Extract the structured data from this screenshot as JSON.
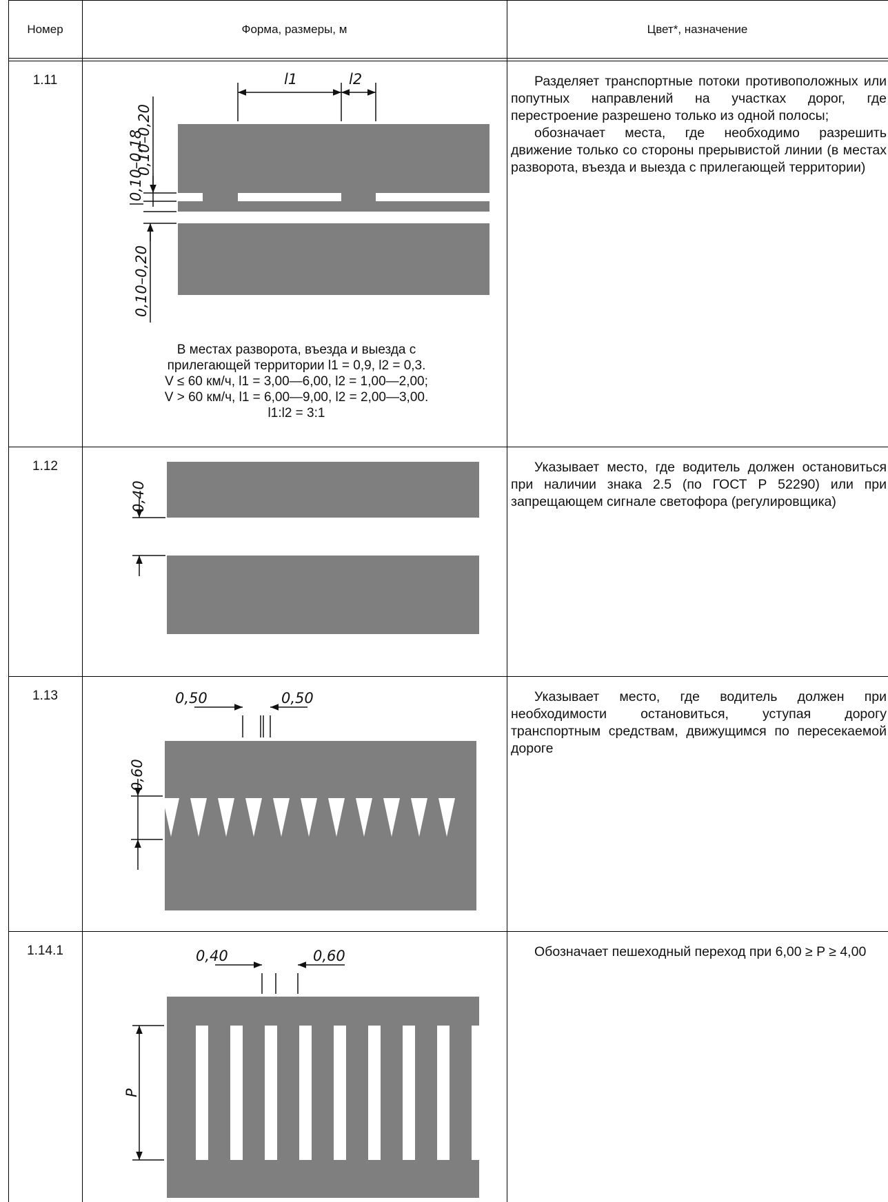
{
  "header": {
    "col_number": "Номер",
    "col_shape": "Форма, размеры, м",
    "col_purpose": "Цвет*, назначение"
  },
  "rows": [
    {
      "number": "1.11",
      "dims": {
        "l1": "l1",
        "l2": "l2",
        "d1": "0,10–0,18",
        "d2": "0,10–0,20",
        "d3": "0,10–0,20"
      },
      "caption": [
        "В местах разворота, въезда и выезда с",
        "прилегающей территории l1 = 0,9, l2 = 0,3.",
        "V ≤ 60 км/ч, l1 = 3,00—6,00, l2 = 1,00—2,00;",
        "V > 60 км/ч, l1 = 6,00—9,00, l2 = 2,00—3,00.",
        "l1:l2 = 3:1"
      ],
      "description": [
        "Разделяет транспортные потоки противоположных или попутных направлений на участках дорог, где перестроение разрешено только из одной полосы;",
        "обозначает места, где необходимо разрешить движение только со стороны прерывистой линии (в местах разворота, въезда и выезда с прилегающей территории)"
      ]
    },
    {
      "number": "1.12",
      "dims": {
        "d1": "0,40"
      },
      "description": [
        "Указывает место, где водитель должен остановиться при наличии знака 2.5 (по ГОСТ Р 52290) или при запрещающем сигнале светофора (регулировщика)"
      ]
    },
    {
      "number": "1.13",
      "dims": {
        "d1": "0,50",
        "d2": "0,50",
        "d3": "0,60"
      },
      "description": [
        "Указывает место, где водитель должен при необходимости остановиться, уступая дорогу транспортным средствам, движущимся по пересекаемой дороге"
      ]
    },
    {
      "number": "1.14.1",
      "dims": {
        "d1": "0,40",
        "d2": "0,60",
        "p": "P"
      },
      "description": [
        "Обозначает пешеходный переход при 6,00 ≥ P ≥ 4,00"
      ]
    }
  ],
  "colors": {
    "asphalt": "#7f7f7f",
    "marking": "#ffffff",
    "rule": "#000000"
  }
}
